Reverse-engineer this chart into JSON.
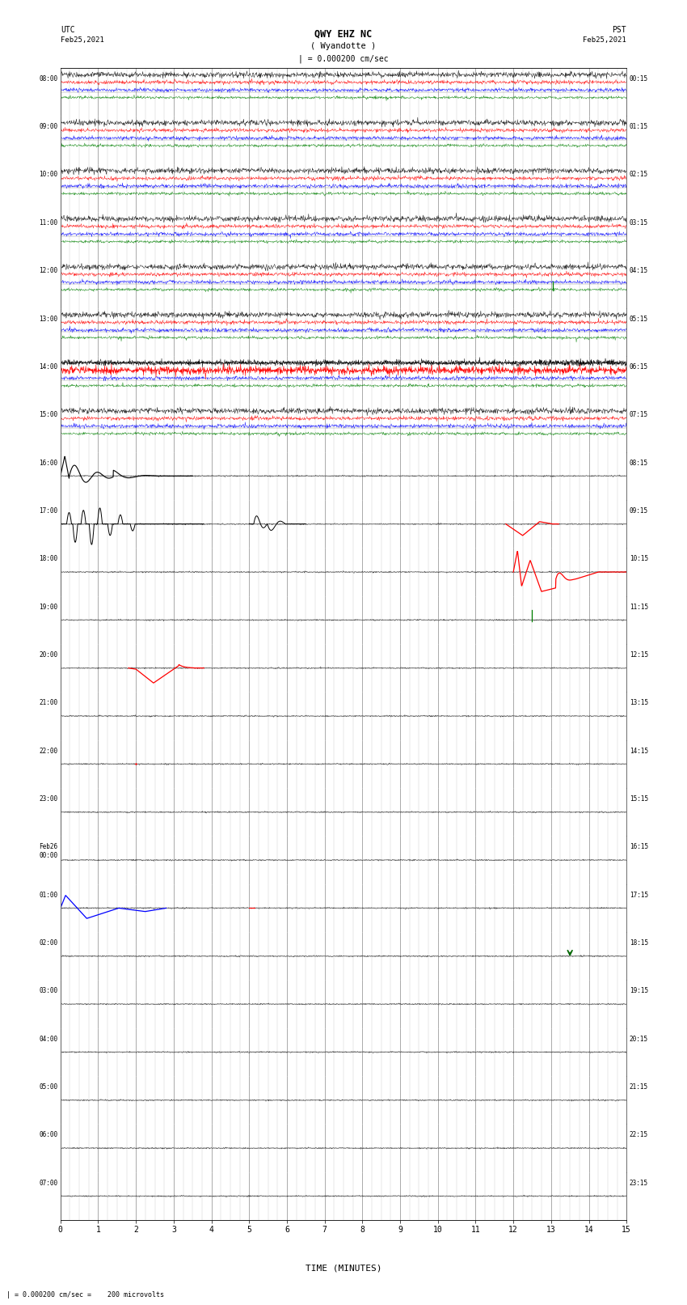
{
  "title_line1": "QWY EHZ NC",
  "title_line2": "( Wyandotte )",
  "scale_text": "| = 0.000200 cm/sec",
  "left_label_top": "UTC",
  "left_label_bot": "Feb25,2021",
  "right_label_top": "PST",
  "right_label_bot": "Feb25,2021",
  "xlabel": "TIME (MINUTES)",
  "bottom_note": "| = 0.000200 cm/sec =    200 microvolts",
  "xlim": [
    0,
    15
  ],
  "xticks": [
    0,
    1,
    2,
    3,
    4,
    5,
    6,
    7,
    8,
    9,
    10,
    11,
    12,
    13,
    14,
    15
  ],
  "bg_color": "#ffffff",
  "grid_major_color": "#888888",
  "grid_minor_color": "#bbbbbb",
  "num_rows": 24,
  "fig_width": 8.5,
  "fig_height": 16.13,
  "left_ytick_labels": [
    "08:00",
    "09:00",
    "10:00",
    "11:00",
    "12:00",
    "13:00",
    "14:00",
    "15:00",
    "16:00",
    "17:00",
    "18:00",
    "19:00",
    "20:00",
    "21:00",
    "22:00",
    "23:00",
    "Feb26\n00:00",
    "01:00",
    "02:00",
    "03:00",
    "04:00",
    "05:00",
    "06:00",
    "07:00"
  ],
  "right_ytick_labels": [
    "00:15",
    "01:15",
    "02:15",
    "03:15",
    "04:15",
    "05:15",
    "06:15",
    "07:15",
    "08:15",
    "09:15",
    "10:15",
    "11:15",
    "12:15",
    "13:15",
    "14:15",
    "15:15",
    "16:15",
    "17:15",
    "18:15",
    "19:15",
    "20:15",
    "21:15",
    "22:15",
    "23:15"
  ],
  "sub_trace_offsets": [
    0.75,
    0.42,
    0.08,
    -0.25
  ],
  "sub_trace_colors": [
    "black",
    "red",
    "blue",
    "green"
  ],
  "sub_trace_noise": [
    0.06,
    0.04,
    0.04,
    0.03
  ]
}
